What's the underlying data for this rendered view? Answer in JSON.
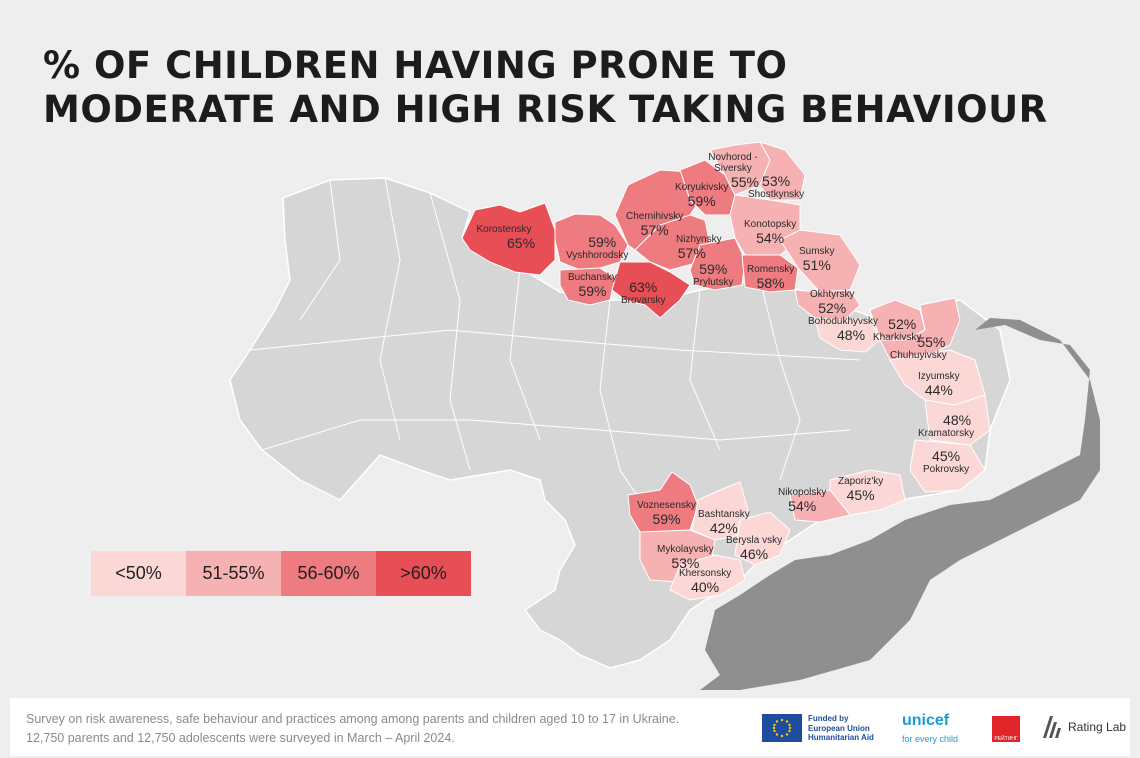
{
  "title": {
    "line1": "% OF CHILDREN HAVING PRONE TO",
    "line2": "MODERATE AND HIGH RISK TAKING BEHAVIOUR"
  },
  "colors": {
    "background": "#eeeeee",
    "base_map": "#d6d6d6",
    "occupied": "#8f8f8f",
    "lt50": "#fbd7d6",
    "51_55": "#f6b1b3",
    "56_60": "#ee7b80",
    "gt60": "#e84e55"
  },
  "legend": [
    {
      "label": "<50%",
      "color": "#fbd7d6"
    },
    {
      "label": "51-55%",
      "color": "#f6b1b3"
    },
    {
      "label": "56-60%",
      "color": "#ee7b80"
    },
    {
      "label": ">60%",
      "color": "#e84e55"
    }
  ],
  "regions": [
    {
      "name": "Korostensky",
      "value": "65%"
    },
    {
      "name": "Vyshhorodsky",
      "value": "59%"
    },
    {
      "name": "Buchansky",
      "value": "59%"
    },
    {
      "name": "Brovarsky",
      "value": "63%"
    },
    {
      "name": "Chernihivsky",
      "value": "57%"
    },
    {
      "name": "Koryukivsky",
      "value": "59%"
    },
    {
      "name": "Nizhynsky",
      "value": "57%"
    },
    {
      "name": "Prylutsky",
      "value": "59%"
    },
    {
      "name": "Novhorod -Siversky",
      "value": "55%"
    },
    {
      "name": "Shostkynsky",
      "value": "53%"
    },
    {
      "name": "Konotopsky",
      "value": "54%"
    },
    {
      "name": "Romensky",
      "value": "58%"
    },
    {
      "name": "Sumsky",
      "value": "51%"
    },
    {
      "name": "Okhtyrsky",
      "value": "52%"
    },
    {
      "name": "Bohodukhyvsky",
      "value": "48%"
    },
    {
      "name": "Kharkivsky",
      "value": "52%"
    },
    {
      "name": "Chuhuyivsky",
      "value": "55%"
    },
    {
      "name": "Izyumsky",
      "value": "44%"
    },
    {
      "name": "Kramatorsky",
      "value": "48%"
    },
    {
      "name": "Pokrovsky",
      "value": "45%"
    },
    {
      "name": "Zaporiz'ky",
      "value": "45%"
    },
    {
      "name": "Nikopolsky",
      "value": "54%"
    },
    {
      "name": "Voznesensky",
      "value": "59%"
    },
    {
      "name": "Bashtansky",
      "value": "42%"
    },
    {
      "name": "Berysla vsky",
      "value": "46%"
    },
    {
      "name": "Mykolayvsky",
      "value": "53%"
    },
    {
      "name": "Khersonsky",
      "value": "40%"
    }
  ],
  "footer": {
    "line1": "Survey on risk awareness, safe behaviour and practices among among parents and children aged 10 to 17 in Ukraine.",
    "line2": "12,750 parents and 12,750 adolescents were surveyed in March – April 2024.",
    "eu_text1": "Funded by",
    "eu_text2": "European Union",
    "eu_text3": "Humanitarian Aid",
    "unicef": "unicef",
    "unicef_sub": "for every child",
    "rating_text": "РЕЙТИНГ",
    "ratinglab": "Rating Lab"
  }
}
